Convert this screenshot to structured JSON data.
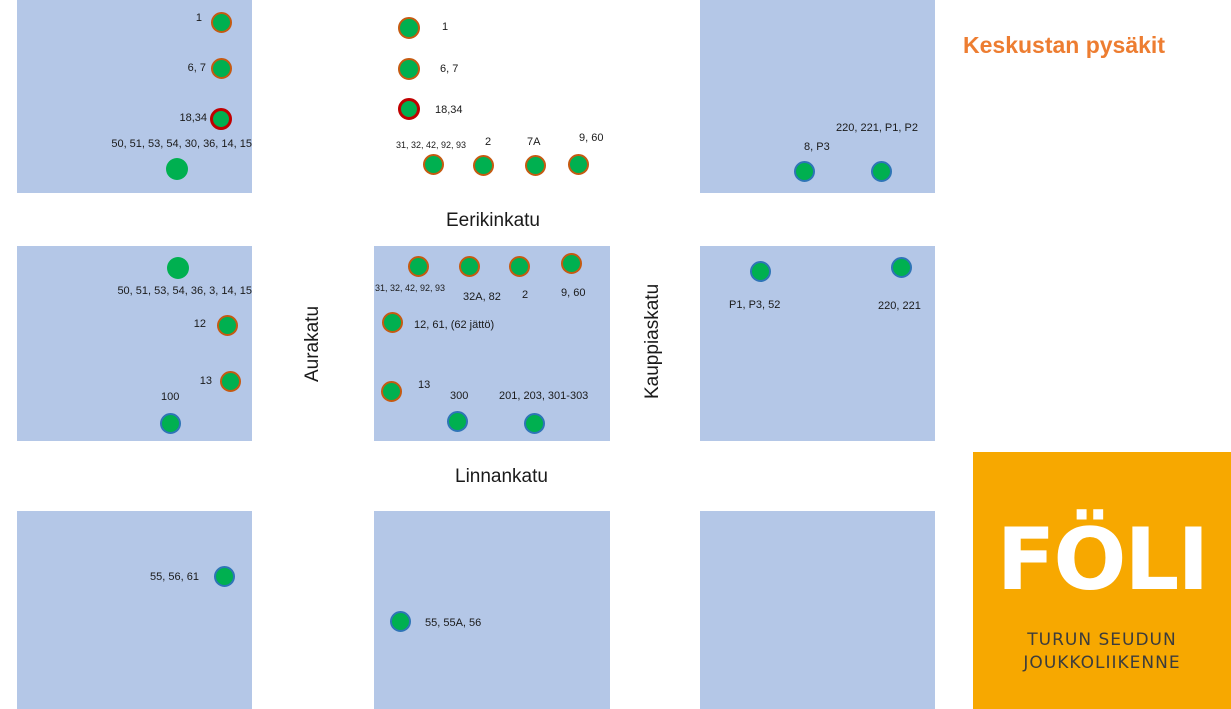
{
  "title": "Keskustan pysäkit",
  "streets": {
    "eerikinkatu": "Eerikinkatu",
    "linnankatu": "Linnankatu",
    "aurakatu": "Aurakatu",
    "kauppiaskatu": "Kauppiaskatu"
  },
  "stops": [
    {
      "label": "1",
      "marker": "green-orange"
    },
    {
      "label": "6, 7",
      "marker": "green-orange"
    },
    {
      "label": "18,34",
      "marker": "green-red"
    },
    {
      "label": "50, 51, 53, 54, 30, 36, 14, 15",
      "marker": "green"
    },
    {
      "label": "1",
      "marker": "green-orange"
    },
    {
      "label": "6, 7",
      "marker": "green-orange"
    },
    {
      "label": "18,34",
      "marker": "green-red"
    },
    {
      "label": "31, 32, 42, 92, 93",
      "marker": "green-orange"
    },
    {
      "label": "2",
      "marker": "green-orange"
    },
    {
      "label": "7A",
      "marker": "green-orange"
    },
    {
      "label": "9, 60",
      "marker": "green-orange"
    },
    {
      "label": "220, 221, P1, P2",
      "marker": "green-blue"
    },
    {
      "label": "8, P3",
      "marker": "green-blue"
    },
    {
      "label": "50, 51, 53, 54, 36, 3, 14, 15",
      "marker": "green"
    },
    {
      "label": "12",
      "marker": "green-orange"
    },
    {
      "label": "13",
      "marker": "green-orange"
    },
    {
      "label": "100",
      "marker": "green-blue"
    },
    {
      "label": "31, 32, 42, 92, 93",
      "marker": "green-orange"
    },
    {
      "label": "32A, 82",
      "marker": "green-orange"
    },
    {
      "label": "2",
      "marker": "green-orange"
    },
    {
      "label": "9, 60",
      "marker": "green-orange"
    },
    {
      "label": "12, 61, (62 jättö)",
      "marker": "green-orange"
    },
    {
      "label": "13",
      "marker": "green-orange"
    },
    {
      "label": "300",
      "marker": "green-blue"
    },
    {
      "label": "201, 203, 301-303",
      "marker": "green-blue"
    },
    {
      "label": "P1, P3, 52",
      "marker": "green-blue"
    },
    {
      "label": "220, 221",
      "marker": "green-blue"
    },
    {
      "label": "55, 56, 61",
      "marker": "green-blue"
    },
    {
      "label": "55, 55A, 56",
      "marker": "green-blue"
    }
  ],
  "logo": {
    "word": "FÖLI",
    "tagline_1": "TURUN SEUDUN",
    "tagline_2": "JOUKKOLIIKENNE"
  },
  "colors": {
    "block": "#b4c7e7",
    "stop_fill": "#00b050",
    "border_orange": "#c55a11",
    "border_red": "#c00000",
    "border_blue": "#2e75b6",
    "title": "#ed7d31",
    "logo_bg": "#f7a800"
  }
}
